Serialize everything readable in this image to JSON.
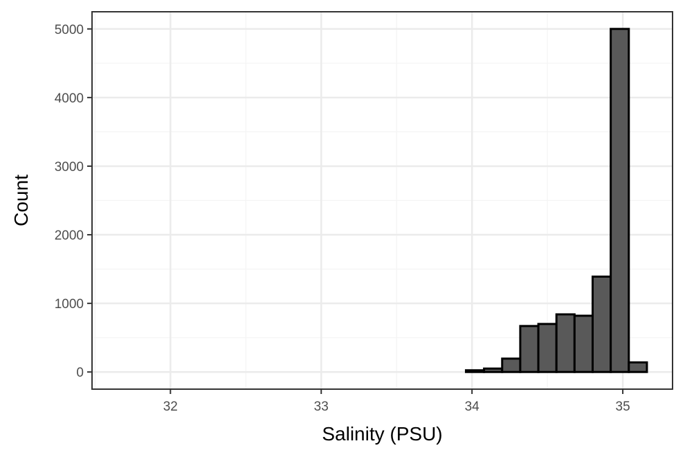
{
  "chart_data": {
    "type": "bar",
    "xlabel": "Salinity (PSU)",
    "ylabel": "Count",
    "xlim": [
      31.48,
      35.33
    ],
    "ylim": [
      -250,
      5250
    ],
    "x_ticks": [
      32,
      33,
      34,
      35
    ],
    "y_ticks": [
      0,
      1000,
      2000,
      3000,
      4000,
      5000
    ],
    "x_tick_labels": [
      "32",
      "33",
      "34",
      "35"
    ],
    "y_tick_labels": [
      "0",
      "1000",
      "2000",
      "3000",
      "4000",
      "5000"
    ],
    "grid": true,
    "bin_width": 0.12,
    "bins": [
      {
        "x": 31.62,
        "count": 0
      },
      {
        "x": 31.74,
        "count": 0
      },
      {
        "x": 31.86,
        "count": 0
      },
      {
        "x": 31.98,
        "count": 0
      },
      {
        "x": 32.1,
        "count": 0
      },
      {
        "x": 32.22,
        "count": 0
      },
      {
        "x": 32.34,
        "count": 0
      },
      {
        "x": 32.46,
        "count": 0
      },
      {
        "x": 32.58,
        "count": 0
      },
      {
        "x": 32.7,
        "count": 0
      },
      {
        "x": 32.82,
        "count": 0
      },
      {
        "x": 32.94,
        "count": 0
      },
      {
        "x": 33.06,
        "count": 0
      },
      {
        "x": 33.18,
        "count": 0
      },
      {
        "x": 33.3,
        "count": 0
      },
      {
        "x": 33.42,
        "count": 0
      },
      {
        "x": 33.54,
        "count": 0
      },
      {
        "x": 33.66,
        "count": 0
      },
      {
        "x": 33.78,
        "count": 0
      },
      {
        "x": 33.9,
        "count": 0
      },
      {
        "x": 34.02,
        "count": 25
      },
      {
        "x": 34.14,
        "count": 50
      },
      {
        "x": 34.26,
        "count": 195
      },
      {
        "x": 34.38,
        "count": 670
      },
      {
        "x": 34.5,
        "count": 700
      },
      {
        "x": 34.62,
        "count": 840
      },
      {
        "x": 34.74,
        "count": 820
      },
      {
        "x": 34.86,
        "count": 1390
      },
      {
        "x": 34.98,
        "count": 5000
      },
      {
        "x": 35.1,
        "count": 140
      }
    ],
    "colors": {
      "bar_fill": "#595959",
      "bar_stroke": "#000000",
      "grid_major": "#ebebeb",
      "grid_minor": "#f4f4f4",
      "panel_border": "#333333"
    }
  }
}
